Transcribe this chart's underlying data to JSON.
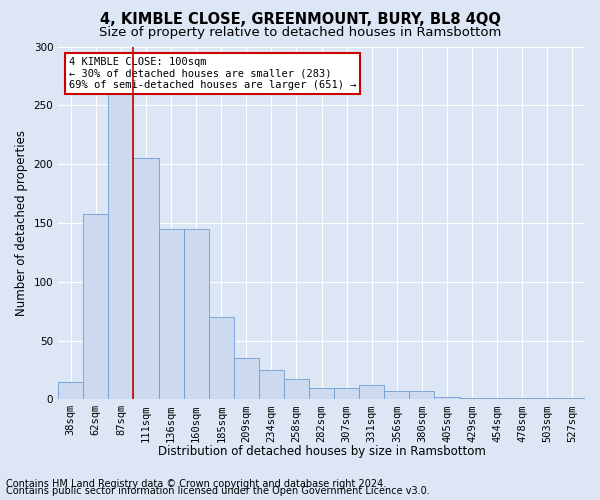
{
  "title": "4, KIMBLE CLOSE, GREENMOUNT, BURY, BL8 4QQ",
  "subtitle": "Size of property relative to detached houses in Ramsbottom",
  "xlabel": "Distribution of detached houses by size in Ramsbottom",
  "ylabel": "Number of detached properties",
  "footnote1": "Contains HM Land Registry data © Crown copyright and database right 2024.",
  "footnote2": "Contains public sector information licensed under the Open Government Licence v3.0.",
  "annotation_line1": "4 KIMBLE CLOSE: 100sqm",
  "annotation_line2": "← 30% of detached houses are smaller (283)",
  "annotation_line3": "69% of semi-detached houses are larger (651) →",
  "bar_labels": [
    "38sqm",
    "62sqm",
    "87sqm",
    "111sqm",
    "136sqm",
    "160sqm",
    "185sqm",
    "209sqm",
    "234sqm",
    "258sqm",
    "282sqm",
    "307sqm",
    "331sqm",
    "356sqm",
    "380sqm",
    "405sqm",
    "429sqm",
    "454sqm",
    "478sqm",
    "503sqm",
    "527sqm"
  ],
  "bar_values": [
    15,
    158,
    280,
    205,
    145,
    145,
    70,
    35,
    25,
    17,
    10,
    10,
    12,
    7,
    7,
    2,
    1,
    1,
    1,
    1,
    1
  ],
  "bar_color": "#ccd9ee",
  "bar_edge_color": "#6b9fd4",
  "red_line_color": "#cc0000",
  "background_color": "#dce6f5",
  "plot_bg_color": "#dce6f5",
  "ylim": [
    0,
    300
  ],
  "annotation_box_color": "white",
  "annotation_box_edge": "#cc0000",
  "title_fontsize": 10.5,
  "subtitle_fontsize": 9.5,
  "axis_label_fontsize": 8.5,
  "tick_fontsize": 7.5,
  "annotation_fontsize": 7.5,
  "footnote_fontsize": 7
}
